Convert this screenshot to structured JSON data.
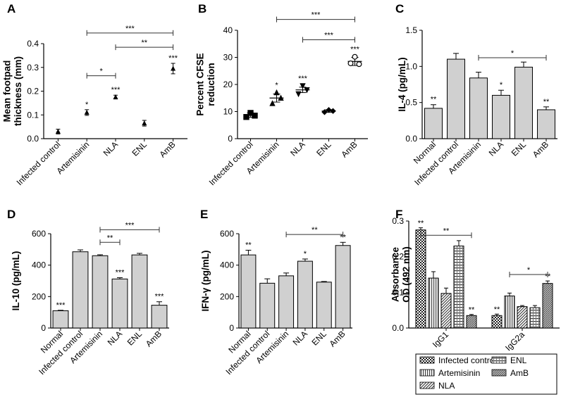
{
  "chart_data": [
    {
      "id": "A",
      "panel_label": "A",
      "type": "scatter",
      "ylabel": "Mean footpad\nthickness (mm)",
      "ylim": [
        0,
        0.4
      ],
      "yticks": [
        "0.0",
        "0.1",
        "0.2",
        "0.3",
        "0.4"
      ],
      "categories": [
        "Infected control",
        "Artemisinin",
        "NLA",
        "ENL",
        "AmB"
      ],
      "means": [
        0.03,
        0.11,
        0.175,
        0.065,
        0.295
      ],
      "errors": [
        0.01,
        0.012,
        0.008,
        0.012,
        0.022
      ],
      "stars": [
        "",
        "*",
        "***",
        "",
        "***"
      ],
      "comparisons": [
        {
          "from": 1,
          "to": 2,
          "label": "*",
          "y": 0.265
        },
        {
          "from": 2,
          "to": 4,
          "label": "**",
          "y": 0.385
        },
        {
          "from": 1,
          "to": 4,
          "label": "***",
          "y": 0.445
        }
      ]
    },
    {
      "id": "B",
      "panel_label": "B",
      "type": "scatter",
      "ylabel": "Percent CFSE\nreduction",
      "ylim": [
        0,
        40
      ],
      "yticks": [
        "0",
        "10",
        "20",
        "30",
        "40"
      ],
      "categories": [
        "Infected control",
        "Artemisinin",
        "NLA",
        "ENL",
        "AmB"
      ],
      "means": [
        8.7,
        15,
        18,
        10.2,
        28.5
      ],
      "errors": [
        0.8,
        1.5,
        1.0,
        0.5,
        1.5
      ],
      "points": [
        [
          8.0,
          9.5,
          8.5
        ],
        [
          13,
          17,
          15
        ],
        [
          16.5,
          19.5,
          18
        ],
        [
          9.8,
          10.6,
          10.2
        ],
        [
          27.8,
          30.2,
          27.5
        ]
      ],
      "markers": [
        "square",
        "triangle-up",
        "triangle-down",
        "diamond",
        "circle-open"
      ],
      "stars": [
        "",
        "*",
        "***",
        "",
        "***"
      ],
      "comparisons": [
        {
          "from": 2,
          "to": 4,
          "label": "***",
          "y": 36.5
        },
        {
          "from": 1,
          "to": 4,
          "label": "***",
          "y": 44
        }
      ]
    },
    {
      "id": "C",
      "panel_label": "C",
      "type": "bar",
      "ylabel": "IL-4 (pg/mL)",
      "ylim": [
        0,
        1.5
      ],
      "yticks": [
        "0.0",
        "0.5",
        "1.0",
        "1.5"
      ],
      "categories": [
        "Normal",
        "Infected control",
        "Artemisinin",
        "NLA",
        "ENL",
        "AmB"
      ],
      "values": [
        0.42,
        1.1,
        0.84,
        0.6,
        0.99,
        0.4
      ],
      "errors": [
        0.05,
        0.08,
        0.08,
        0.07,
        0.07,
        0.04
      ],
      "stars": [
        "**",
        "",
        "",
        "*",
        "",
        "**"
      ],
      "comparisons": [
        {
          "from": 2,
          "to": 5,
          "label": "*",
          "y": 1.12
        }
      ]
    },
    {
      "id": "D",
      "panel_label": "D",
      "type": "bar",
      "ylabel": "IL-10 (pg/mL)",
      "ylim": [
        0,
        600
      ],
      "yticks": [
        "0",
        "200",
        "400",
        "600"
      ],
      "categories": [
        "Normal",
        "Infected control",
        "Artemisinin",
        "NLA",
        "ENL",
        "AmB"
      ],
      "values": [
        110,
        485,
        460,
        312,
        465,
        145
      ],
      "errors": [
        3,
        12,
        6,
        8,
        10,
        22
      ],
      "stars": [
        "***",
        "",
        "",
        "***",
        "",
        "***"
      ],
      "comparisons": [
        {
          "from": 2,
          "to": 3,
          "label": "**",
          "y": 545
        },
        {
          "from": 2,
          "to": 5,
          "label": "***",
          "y": 625
        }
      ]
    },
    {
      "id": "E",
      "panel_label": "E",
      "type": "bar",
      "ylabel": "IFN-γ (pg/mL)",
      "ylim": [
        0,
        600
      ],
      "yticks": [
        "0",
        "200",
        "400",
        "600"
      ],
      "categories": [
        "Normal",
        "Infected control",
        "Artemisinin",
        "NLA",
        "ENL",
        "AmB"
      ],
      "values": [
        465,
        285,
        332,
        425,
        292,
        525
      ],
      "errors": [
        30,
        28,
        18,
        14,
        4,
        20
      ],
      "stars": [
        "**",
        "",
        "",
        "*",
        "",
        "**"
      ],
      "comparisons": [
        {
          "from": 2,
          "to": 5,
          "label": "**",
          "y": 595
        }
      ]
    },
    {
      "id": "F",
      "panel_label": "F",
      "type": "bar",
      "ylabel": "Absorbance\nOD (492 nm)",
      "ylim": [
        0,
        0.3
      ],
      "yticks": [
        "0.0",
        "0.1",
        "0.2",
        "0.3"
      ],
      "groups": [
        "IgG1",
        "IgG2a"
      ],
      "series": [
        {
          "name": "Infected control",
          "pattern": "checker",
          "values": [
            0.275,
            0.035
          ],
          "errors": [
            0.006,
            0.004
          ],
          "stars": [
            "**",
            "**"
          ]
        },
        {
          "name": "Artemisinin",
          "pattern": "vstripes",
          "values": [
            0.14,
            0.09
          ],
          "errors": [
            0.018,
            0.008
          ],
          "stars": [
            "",
            ""
          ]
        },
        {
          "name": "NLA",
          "pattern": "dstripes",
          "values": [
            0.097,
            0.06
          ],
          "errors": [
            0.015,
            0.003
          ],
          "stars": [
            "",
            ""
          ]
        },
        {
          "name": "ENL",
          "pattern": "hgrid",
          "values": [
            0.23,
            0.057
          ],
          "errors": [
            0.015,
            0.006
          ],
          "stars": [
            "",
            ""
          ]
        },
        {
          "name": "AmB",
          "pattern": "dense",
          "values": [
            0.035,
            0.125
          ],
          "errors": [
            0.003,
            0.007
          ],
          "stars": [
            "**",
            "**"
          ]
        }
      ],
      "comparisons": [
        {
          "group": 0,
          "from": 0,
          "to": 4,
          "label": "**",
          "y": 0.26
        },
        {
          "group": 1,
          "from": 1,
          "to": 4,
          "label": "*",
          "y": 0.15
        }
      ],
      "legend": {
        "position": "bottom",
        "entries": [
          "Infected control",
          "ENL",
          "Artemisinin",
          "AmB",
          "NLA"
        ]
      }
    }
  ]
}
